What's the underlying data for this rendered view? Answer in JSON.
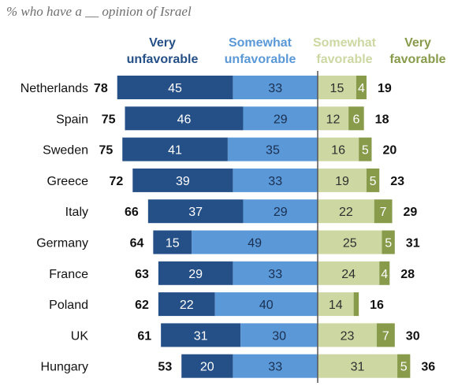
{
  "subtitle": "% who have a __ opinion of Israel",
  "colors": {
    "very_unfavorable": "#254f87",
    "somewhat_unfavorable": "#5a98d8",
    "somewhat_favorable": "#ccd7a2",
    "very_favorable": "#879b4a",
    "divider": "#555555"
  },
  "headers": {
    "very_unfavorable": [
      "Very",
      "unfavorable"
    ],
    "somewhat_unfavorable": [
      "Somewhat",
      "unfavorable"
    ],
    "somewhat_favorable": [
      "Somewhat",
      "favorable"
    ],
    "very_favorable": [
      "Very",
      "favorable"
    ]
  },
  "chart_data": {
    "type": "bar",
    "orientation": "horizontal",
    "stacked": "diverging",
    "title": "",
    "subtitle": "% who have a __ opinion of Israel",
    "categories": [
      "Netherlands",
      "Spain",
      "Sweden",
      "Greece",
      "Italy",
      "Germany",
      "France",
      "Poland",
      "UK",
      "Hungary"
    ],
    "series": [
      {
        "name": "Very unfavorable",
        "values": [
          45,
          46,
          41,
          39,
          37,
          15,
          29,
          22,
          31,
          20
        ]
      },
      {
        "name": "Somewhat unfavorable",
        "values": [
          33,
          29,
          35,
          33,
          29,
          49,
          33,
          40,
          30,
          33
        ]
      },
      {
        "name": "Somewhat favorable",
        "values": [
          15,
          12,
          16,
          19,
          22,
          25,
          24,
          14,
          23,
          31
        ]
      },
      {
        "name": "Very favorable",
        "values": [
          4,
          6,
          5,
          5,
          7,
          5,
          4,
          2,
          7,
          5
        ]
      }
    ],
    "unfavorable_totals": [
      78,
      75,
      75,
      72,
      66,
      64,
      63,
      62,
      61,
      53
    ],
    "favorable_totals": [
      19,
      18,
      20,
      23,
      29,
      31,
      28,
      16,
      30,
      36
    ],
    "labeled": [
      [
        true,
        true,
        true,
        true
      ],
      [
        true,
        true,
        true,
        true
      ],
      [
        true,
        true,
        true,
        true
      ],
      [
        true,
        true,
        true,
        true
      ],
      [
        true,
        true,
        true,
        true
      ],
      [
        true,
        true,
        true,
        true
      ],
      [
        true,
        true,
        true,
        true
      ],
      [
        true,
        true,
        true,
        false
      ],
      [
        true,
        true,
        true,
        true
      ],
      [
        true,
        true,
        true,
        true
      ]
    ],
    "legend": "top",
    "grid": false
  }
}
